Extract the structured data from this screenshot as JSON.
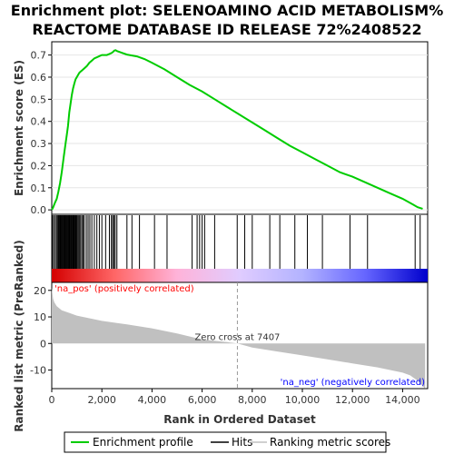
{
  "chart_data": {
    "type": "line",
    "title_lines": [
      "Enrichment plot: SELENOAMINO ACID METABOLISM%",
      "REACTOME DATABASE ID RELEASE 72%2408522"
    ],
    "top_panel": {
      "ylabel": "Enrichment score (ES)",
      "ylim": [
        -0.02,
        0.76
      ],
      "yticks": [
        0.0,
        0.1,
        0.2,
        0.3,
        0.4,
        0.5,
        0.6,
        0.7
      ],
      "ytick_labels": [
        "0.0",
        "0.1",
        "0.2",
        "0.3",
        "0.4",
        "0.5",
        "0.6",
        "0.7"
      ],
      "series_name": "Enrichment profile",
      "x": [
        0,
        50,
        120,
        200,
        260,
        330,
        400,
        480,
        550,
        600,
        650,
        700,
        750,
        800,
        850,
        900,
        950,
        1000,
        1050,
        1100,
        1150,
        1200,
        1300,
        1400,
        1500,
        1600,
        1700,
        1800,
        1900,
        2000,
        2100,
        2200,
        2300,
        2400,
        2450,
        2500,
        2550,
        2600,
        2800,
        3000,
        3200,
        3400,
        3700,
        4000,
        4500,
        5000,
        5500,
        6000,
        6500,
        7000,
        7500,
        8000,
        8500,
        9000,
        9500,
        10000,
        10500,
        11000,
        11500,
        12000,
        12500,
        13000,
        13500,
        14000,
        14400,
        14600,
        14800
      ],
      "y": [
        0.0,
        0.01,
        0.03,
        0.05,
        0.08,
        0.12,
        0.17,
        0.24,
        0.3,
        0.34,
        0.38,
        0.44,
        0.48,
        0.52,
        0.55,
        0.57,
        0.59,
        0.6,
        0.61,
        0.62,
        0.625,
        0.63,
        0.64,
        0.65,
        0.665,
        0.675,
        0.685,
        0.69,
        0.695,
        0.7,
        0.7,
        0.7,
        0.705,
        0.71,
        0.715,
        0.72,
        0.722,
        0.718,
        0.71,
        0.702,
        0.698,
        0.694,
        0.682,
        0.665,
        0.635,
        0.6,
        0.565,
        0.535,
        0.5,
        0.465,
        0.43,
        0.395,
        0.36,
        0.325,
        0.29,
        0.26,
        0.23,
        0.2,
        0.17,
        0.15,
        0.125,
        0.1,
        0.075,
        0.05,
        0.025,
        0.012,
        0.005
      ],
      "color": "#00cc00"
    },
    "hits_panel": {
      "series_name": "Hits",
      "positions": [
        30,
        80,
        140,
        190,
        230,
        270,
        300,
        330,
        360,
        390,
        420,
        450,
        480,
        510,
        540,
        570,
        600,
        630,
        660,
        690,
        720,
        750,
        780,
        810,
        840,
        870,
        900,
        930,
        960,
        990,
        1020,
        1060,
        1100,
        1150,
        1200,
        1250,
        1300,
        1380,
        1450,
        1520,
        1600,
        1700,
        1800,
        1900,
        2000,
        2150,
        2300,
        2380,
        2430,
        2480,
        2530,
        2600,
        3000,
        3200,
        3500,
        4100,
        4600,
        5600,
        5800,
        5900,
        6000,
        6100,
        6500,
        7400,
        7700,
        8000,
        8700,
        9100,
        9700,
        10200,
        10800,
        11900,
        12600,
        14500,
        14700
      ],
      "gradient_colors": [
        "#d40000",
        "#ff6666",
        "#ffb3d9",
        "#e0ccff",
        "#b3b3ff",
        "#6666ff",
        "#0000cc"
      ]
    },
    "bottom_panel": {
      "ylabel": "Ranked list metric (PreRanked)",
      "ylim": [
        -17,
        23
      ],
      "yticks": [
        20,
        10,
        0,
        -10
      ],
      "ytick_labels": [
        "20",
        "10",
        "0",
        "-10"
      ],
      "series_name": "Ranking metric scores",
      "x": [
        0,
        50,
        100,
        200,
        400,
        700,
        1000,
        1500,
        2000,
        3000,
        4000,
        5000,
        6000,
        7000,
        7407,
        8000,
        9000,
        10000,
        11000,
        12000,
        13000,
        13500,
        14000,
        14300,
        14600,
        14800,
        14900
      ],
      "y": [
        21,
        17,
        15.5,
        14,
        12.5,
        11.5,
        10.5,
        9.5,
        8.5,
        7.2,
        5.7,
        3.8,
        1.5,
        0.5,
        0,
        -1.5,
        -3,
        -4.5,
        -6,
        -7.5,
        -9,
        -10,
        -11,
        -12,
        -14,
        -16,
        -17
      ],
      "color": "#c0c0c0",
      "zero_cross_label": "Zero cross at 7407",
      "zero_cross": 7407,
      "pos_label": "'na_pos' (positively correlated)",
      "neg_label": "'na_neg' (negatively correlated)",
      "pos_color": "#ff0000",
      "neg_color": "#0000ff"
    },
    "xlabel": "Rank in Ordered Dataset",
    "xlim": [
      0,
      15000
    ],
    "xticks": [
      0,
      2000,
      4000,
      6000,
      8000,
      10000,
      12000,
      14000
    ],
    "xtick_labels": [
      "0",
      "2,000",
      "4,000",
      "6,000",
      "8,000",
      "10,000",
      "12,000",
      "14,000"
    ],
    "legend": {
      "placement": "bottom",
      "items": [
        {
          "label": "Enrichment profile",
          "color": "#00cc00"
        },
        {
          "label": "Hits",
          "color": "#000000"
        },
        {
          "label": "Ranking metric scores",
          "color": "#c0c0c0"
        }
      ]
    }
  }
}
